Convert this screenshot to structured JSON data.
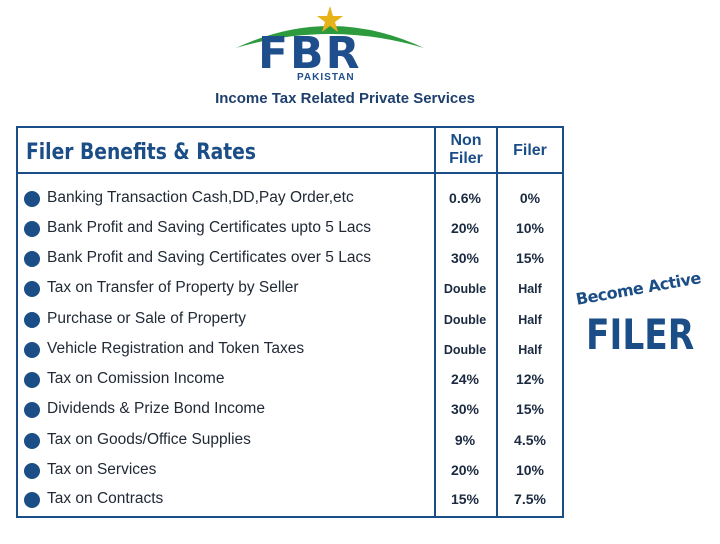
{
  "header": {
    "logo_text": "FBR",
    "logo_sub": "PAKISTAN",
    "subtitle": "Income Tax Related Private Services"
  },
  "table": {
    "title": "Filer Benefits & Rates",
    "col_nonfiler": "Non\nFiler",
    "col_nonfiler_l1": "Non",
    "col_nonfiler_l2": "Filer",
    "col_filer": "Filer",
    "rows": [
      {
        "label": "Banking Transaction Cash,DD,Pay Order,etc",
        "nonfiler": "0.6%",
        "filer": "0%"
      },
      {
        "label": "Bank Profit and Saving  Certificates upto 5 Lacs",
        "nonfiler": "20%",
        "filer": "10%"
      },
      {
        "label": "Bank Profit and Saving  Certificates over 5 Lacs",
        "nonfiler": "30%",
        "filer": "15%"
      },
      {
        "label": "Tax on Transfer of Property by Seller",
        "nonfiler": "Double",
        "filer": "Half"
      },
      {
        "label": "Purchase or Sale of Property",
        "nonfiler": "Double",
        "filer": "Half"
      },
      {
        "label": "Vehicle Registration and Token Taxes",
        "nonfiler": "Double",
        "filer": "Half"
      },
      {
        "label": "Tax on Comission Income",
        "nonfiler": "24%",
        "filer": "12%"
      },
      {
        "label": "Dividends & Prize Bond Income",
        "nonfiler": "30%",
        "filer": "15%"
      },
      {
        "label": "Tax on Goods/Office Supplies",
        "nonfiler": "9%",
        "filer": "4.5%"
      },
      {
        "label": "Tax on Services",
        "nonfiler": "20%",
        "filer": "10%"
      },
      {
        "label": "Tax on Contracts",
        "nonfiler": "15%",
        "filer": "7.5%"
      }
    ]
  },
  "promo": {
    "line1": "Become Active",
    "line2": "FILER"
  },
  "colors": {
    "brand_blue": "#1b4d86",
    "logo_green": "#2e9a3e",
    "star_gold": "#e8b21a"
  }
}
